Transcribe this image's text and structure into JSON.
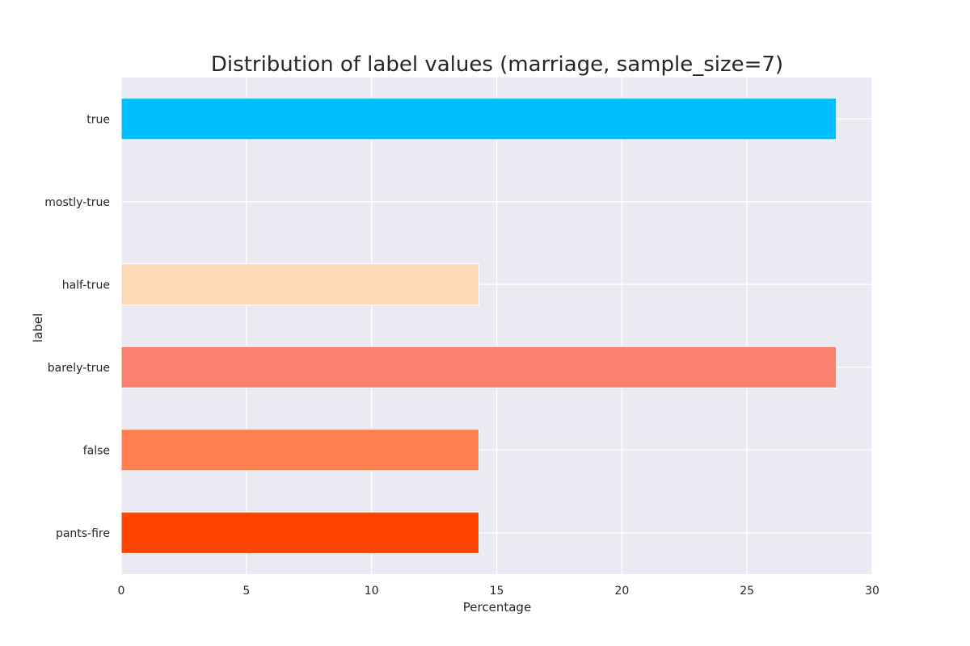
{
  "chart_data": {
    "type": "bar",
    "orientation": "horizontal",
    "title": "Distribution of label values (marriage, sample_size=7)",
    "xlabel": "Percentage",
    "ylabel": "label",
    "xlim": [
      0,
      30
    ],
    "x_ticks": [
      0,
      5,
      10,
      15,
      20,
      25,
      30
    ],
    "grid": true,
    "categories": [
      "pants-fire",
      "false",
      "barely-true",
      "half-true",
      "mostly-true",
      "true"
    ],
    "values": [
      14.29,
      14.29,
      28.57,
      14.29,
      0,
      28.57
    ],
    "colors": [
      "#ff4500",
      "#ff7f50",
      "#fa8072",
      "#fddab8",
      "#eaeaf2",
      "#00bfff"
    ]
  }
}
